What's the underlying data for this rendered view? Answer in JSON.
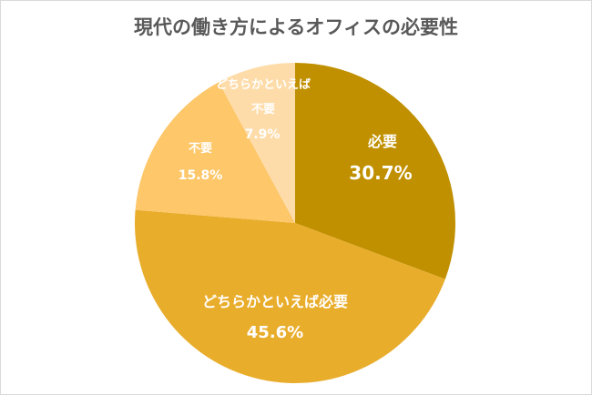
{
  "chart_data": {
    "type": "pie",
    "title": "現代の働き方によるオフィスの必要性",
    "start": "top",
    "direction": "clockwise",
    "slices": [
      {
        "label": "必要",
        "value": 30.7,
        "value_label": "30.7%",
        "color": "#C09000"
      },
      {
        "label": "どちらかといえば必要",
        "value": 45.6,
        "value_label": "45.6%",
        "color": "#E9AD2C"
      },
      {
        "label": "不要",
        "value": 15.8,
        "value_label": "15.8%",
        "color": "#FDC76A"
      },
      {
        "label_lines": [
          "どちらかといえば",
          "不要"
        ],
        "value": 7.9,
        "value_label": "7.9%",
        "color": "#FEDCAA"
      }
    ]
  }
}
